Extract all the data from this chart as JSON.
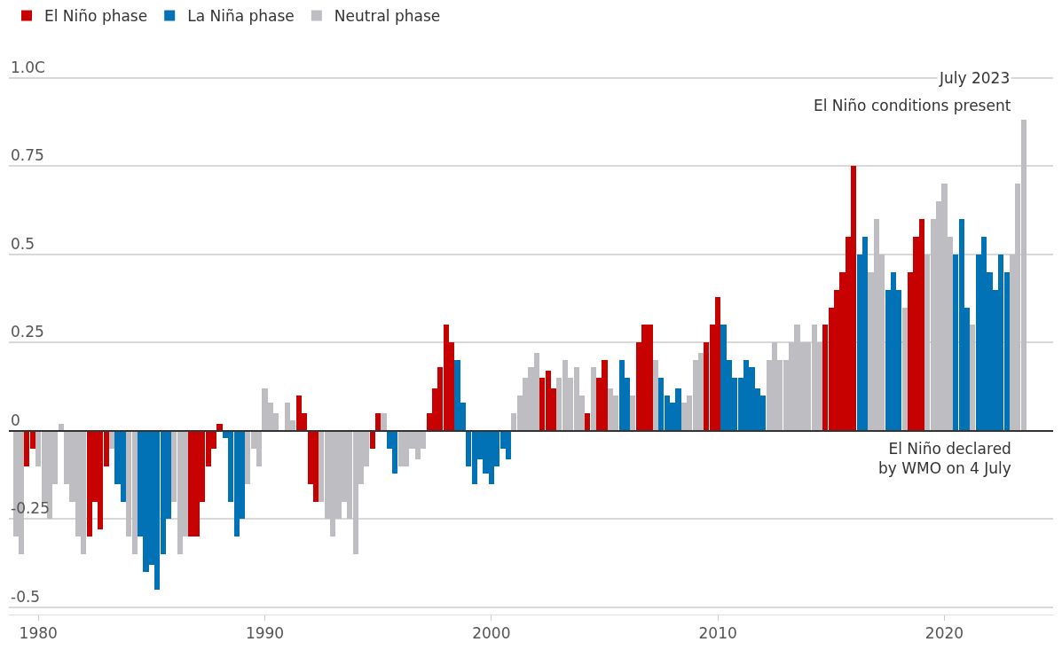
{
  "chart_data": {
    "type": "bar",
    "annotations": [
      "July 2023",
      {
        "text": "El Niño conditions present",
        "x": 2023.5,
        "y": 0.88
      },
      {
        "text": "El Niño declared\nby WMO on 4 July",
        "x": 2023.5,
        "y": 0
      }
    ],
    "series": [
      {
        "name": "El Niño phase",
        "color": "#c70000",
        "x": [
          1979.5,
          1979.75,
          1982.25,
          1982.5,
          1982.75,
          1983.0,
          1986.75,
          1987.0,
          1987.25,
          1987.5,
          1987.75,
          1988.0,
          1991.5,
          1991.75,
          1992.0,
          1992.25,
          1994.75,
          1995.0,
          1997.25,
          1997.5,
          1997.75,
          1998.0,
          1998.25,
          2002.25,
          2002.5,
          2002.75,
          2004.25,
          2004.75,
          2005.0,
          2006.5,
          2006.75,
          2007.0,
          2009.5,
          2009.75,
          2010.0,
          2014.75,
          2015.0,
          2015.25,
          2015.5,
          2015.75,
          2016.0,
          2018.5,
          2018.75,
          2019.0
        ],
        "values": [
          -0.1,
          -0.05,
          -0.3,
          -0.2,
          -0.28,
          -0.1,
          -0.3,
          -0.3,
          -0.2,
          -0.1,
          -0.05,
          0.02,
          0.1,
          0.05,
          -0.15,
          -0.2,
          -0.05,
          0.05,
          0.05,
          0.12,
          0.18,
          0.3,
          0.25,
          0.15,
          0.17,
          0.12,
          0.05,
          0.15,
          0.2,
          0.25,
          0.3,
          0.3,
          0.25,
          0.3,
          0.38,
          0.3,
          0.35,
          0.4,
          0.45,
          0.55,
          0.75,
          0.45,
          0.55,
          0.6
        ]
      },
      {
        "name": "La Niña phase",
        "color": "#0072b5",
        "x": [
          1983.5,
          1983.75,
          1984.5,
          1984.75,
          1985.0,
          1985.25,
          1985.5,
          1985.75,
          1988.25,
          1988.5,
          1988.75,
          1989.0,
          1995.5,
          1995.75,
          1998.5,
          1998.75,
          1999.0,
          1999.25,
          1999.5,
          1999.75,
          2000.0,
          2000.25,
          2000.5,
          2000.75,
          2005.75,
          2006.0,
          2007.5,
          2007.75,
          2008.0,
          2008.25,
          2010.25,
          2010.5,
          2010.75,
          2011.0,
          2011.25,
          2011.5,
          2011.75,
          2012.0,
          2016.25,
          2016.5,
          2017.5,
          2017.75,
          2018.0,
          2020.5,
          2020.75,
          2021.0,
          2021.5,
          2021.75,
          2022.0,
          2022.25,
          2022.5,
          2022.75
        ],
        "values": [
          -0.15,
          -0.2,
          -0.3,
          -0.4,
          -0.38,
          -0.45,
          -0.35,
          -0.25,
          -0.02,
          -0.2,
          -0.3,
          -0.25,
          -0.05,
          -0.12,
          0.2,
          0.08,
          -0.1,
          -0.15,
          -0.08,
          -0.12,
          -0.15,
          -0.1,
          -0.05,
          -0.08,
          0.2,
          0.15,
          0.15,
          0.1,
          0.08,
          0.12,
          0.3,
          0.2,
          0.15,
          0.15,
          0.2,
          0.18,
          0.12,
          0.1,
          0.5,
          0.55,
          0.4,
          0.45,
          0.4,
          0.5,
          0.6,
          0.35,
          0.5,
          0.55,
          0.45,
          0.4,
          0.5,
          0.45
        ]
      },
      {
        "name": "Neutral phase",
        "color": "#bdbdc2",
        "x": [
          1979.0,
          1979.25,
          1980.0,
          1980.25,
          1980.5,
          1980.75,
          1981.0,
          1981.25,
          1981.5,
          1981.75,
          1982.0,
          1983.25,
          1984.0,
          1984.25,
          1986.0,
          1986.25,
          1986.5,
          1989.25,
          1989.5,
          1989.75,
          1990.0,
          1990.25,
          1990.5,
          1990.75,
          1991.0,
          1991.25,
          1992.5,
          1992.75,
          1993.0,
          1993.25,
          1993.5,
          1993.75,
          1994.0,
          1994.25,
          1994.5,
          1995.25,
          1996.0,
          1996.25,
          1996.5,
          1996.75,
          1997.0,
          2001.0,
          2001.25,
          2001.5,
          2001.75,
          2002.0,
          2003.0,
          2003.25,
          2003.5,
          2003.75,
          2004.0,
          2004.5,
          2005.25,
          2005.5,
          2006.25,
          2007.25,
          2008.5,
          2008.75,
          2009.0,
          2009.25,
          2012.25,
          2012.5,
          2012.75,
          2013.0,
          2013.25,
          2013.5,
          2013.75,
          2014.0,
          2014.25,
          2014.5,
          2016.75,
          2017.0,
          2017.25,
          2018.25,
          2019.25,
          2019.5,
          2019.75,
          2020.0,
          2020.25,
          2021.25,
          2023.0,
          2023.25,
          2023.5
        ],
        "values": [
          -0.3,
          -0.35,
          -0.1,
          -0.2,
          -0.25,
          -0.15,
          0.02,
          -0.15,
          -0.2,
          -0.3,
          -0.35,
          -0.05,
          -0.3,
          -0.35,
          -0.2,
          -0.35,
          -0.3,
          -0.15,
          -0.05,
          -0.1,
          0.12,
          0.08,
          0.05,
          0.0,
          0.08,
          0.03,
          -0.2,
          -0.25,
          -0.3,
          -0.25,
          -0.2,
          -0.25,
          -0.35,
          -0.15,
          -0.1,
          0.05,
          -0.1,
          -0.1,
          -0.05,
          -0.08,
          -0.05,
          0.05,
          0.1,
          0.15,
          0.18,
          0.22,
          0.15,
          0.2,
          0.15,
          0.18,
          0.1,
          0.18,
          0.12,
          0.1,
          0.1,
          0.2,
          0.08,
          0.1,
          0.2,
          0.22,
          0.2,
          0.25,
          0.2,
          0.2,
          0.25,
          0.3,
          0.25,
          0.25,
          0.3,
          0.25,
          0.45,
          0.6,
          0.5,
          0.35,
          0.5,
          0.6,
          0.65,
          0.7,
          0.55,
          0.3,
          0.5,
          0.7,
          0.88
        ]
      }
    ],
    "xlim": [
      1978.7,
      2024.8
    ],
    "xticks": [
      1980,
      1990,
      2000,
      2010,
      2020
    ],
    "ylim": [
      -0.52,
      1.22
    ],
    "yticks": [
      {
        "value": 1.0,
        "label": "1.0C"
      },
      0.75,
      0.5,
      0.25,
      0,
      -0.25,
      -0.5
    ],
    "ref_lines": [
      {
        "axis": "y",
        "value": 0,
        "color": "#333333"
      }
    ],
    "grid": "y",
    "legend": "top left"
  }
}
